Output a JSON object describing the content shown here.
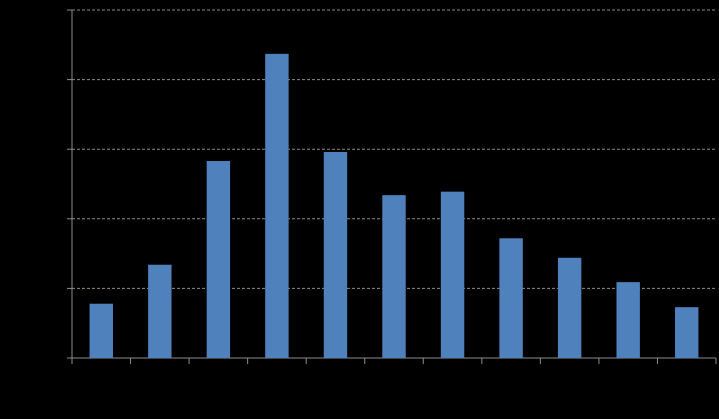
{
  "chart_data": {
    "type": "bar",
    "categories": [
      null,
      null,
      null,
      null,
      null,
      null,
      null,
      null,
      null,
      null,
      null
    ],
    "values": [
      0.78,
      1.34,
      2.83,
      4.37,
      2.96,
      2.34,
      2.39,
      1.72,
      1.44,
      1.09,
      0.73
    ],
    "color": "#4f81bd",
    "ylim": [
      0,
      5
    ],
    "yticks": [
      0,
      1,
      2,
      3,
      4,
      5
    ],
    "grid": true
  }
}
